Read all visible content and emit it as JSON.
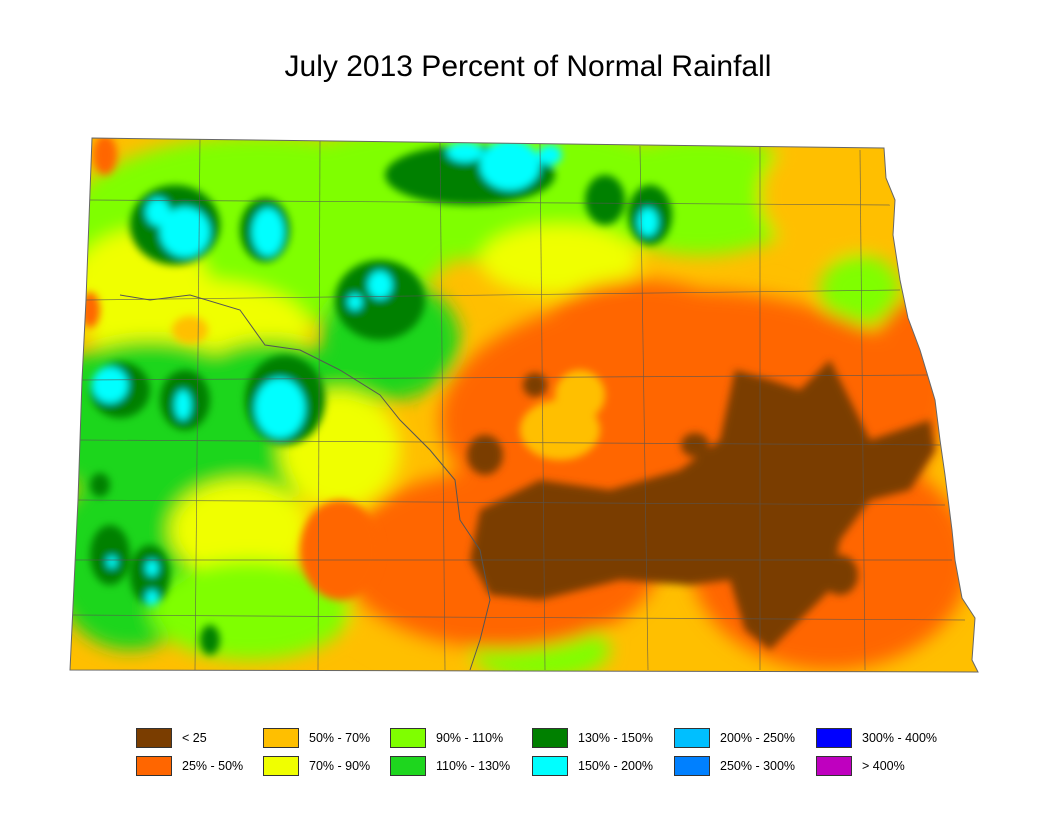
{
  "title": "July 2013 Percent of Normal Rainfall",
  "colors": {
    "lt25": "#7a3d00",
    "p25_50": "#ff6600",
    "p50_70": "#ffbf00",
    "p70_90": "#f0ff00",
    "p90_110": "#7fff00",
    "p110_130": "#1ed61e",
    "p130_150": "#008000",
    "p150_200": "#00ffff",
    "p200_250": "#00bfff",
    "p250_300": "#0080ff",
    "p300_400": "#0000ff",
    "gt400": "#bf00bf"
  },
  "legend": [
    {
      "label": "< 25",
      "color": "#7a3d00"
    },
    {
      "label": "25% - 50%",
      "color": "#ff6600"
    },
    {
      "label": "50% - 70%",
      "color": "#ffbf00"
    },
    {
      "label": "70% - 90%",
      "color": "#f0ff00"
    },
    {
      "label": "90% - 110%",
      "color": "#7fff00"
    },
    {
      "label": "110% - 130%",
      "color": "#1ed61e"
    },
    {
      "label": "130% - 150%",
      "color": "#008000"
    },
    {
      "label": "150% - 200%",
      "color": "#00ffff"
    },
    {
      "label": "200% - 250%",
      "color": "#00bfff"
    },
    {
      "label": "250% - 300%",
      "color": "#0080ff"
    },
    {
      "label": "300% - 400%",
      "color": "#0000ff"
    },
    {
      "label": "> 400%",
      "color": "#bf00bf"
    }
  ]
}
